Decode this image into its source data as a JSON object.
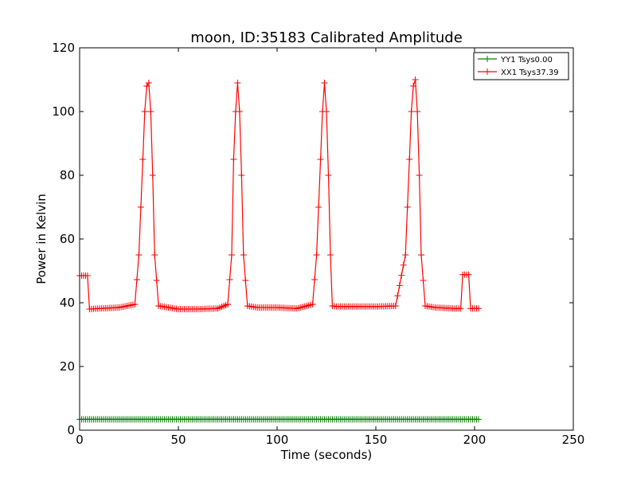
{
  "chart_data": {
    "type": "line",
    "title": "moon, ID:35183 Calibrated Amplitude",
    "xlabel": "Time (seconds)",
    "ylabel": "Power in Kelvin",
    "xlim": [
      0,
      250
    ],
    "ylim": [
      0,
      120
    ],
    "xticks": [
      "0",
      "50",
      "100",
      "150",
      "200",
      "250"
    ],
    "yticks": [
      "0",
      "20",
      "40",
      "60",
      "80",
      "100",
      "120"
    ],
    "grid": false,
    "legend_position": "top-right",
    "marker": "+",
    "series": [
      {
        "name": "YY1 Tsys0.00",
        "color": "#008000",
        "x": [
          0,
          10,
          20,
          30,
          40,
          50,
          60,
          70,
          80,
          90,
          100,
          110,
          120,
          130,
          140,
          150,
          160,
          170,
          180,
          190,
          202
        ],
        "y": [
          3.4,
          3.4,
          3.4,
          3.4,
          3.4,
          3.4,
          3.4,
          3.4,
          3.4,
          3.4,
          3.4,
          3.4,
          3.4,
          3.4,
          3.4,
          3.4,
          3.4,
          3.4,
          3.4,
          3.4,
          3.4
        ]
      },
      {
        "name": "XX1 Tsys37.39",
        "color": "#ff0000",
        "x": [
          0,
          4,
          5,
          10,
          20,
          28,
          30,
          32,
          33,
          34,
          35,
          36,
          37,
          38,
          40,
          45,
          50,
          60,
          70,
          75,
          77,
          78,
          79,
          80,
          81,
          82,
          83,
          85,
          90,
          100,
          110,
          118,
          120,
          122,
          123,
          124,
          125,
          126,
          127,
          128,
          130,
          140,
          150,
          160,
          165,
          167,
          168,
          169,
          170,
          171,
          172,
          173,
          175,
          180,
          190,
          193,
          194,
          197,
          198,
          202
        ],
        "y": [
          48.5,
          48.5,
          38,
          38.2,
          38.5,
          39.5,
          55,
          85,
          100,
          108,
          109,
          100,
          80,
          55,
          39,
          38.5,
          38,
          38,
          38.2,
          39.5,
          55,
          85,
          100,
          109,
          100,
          80,
          55,
          39,
          38.5,
          38.5,
          38.2,
          39.5,
          55,
          85,
          100,
          109,
          100,
          80,
          55,
          39,
          38.8,
          38.8,
          38.8,
          39,
          55,
          85,
          100,
          108,
          110,
          100,
          80,
          55,
          39,
          38.5,
          38.2,
          38.2,
          48.8,
          48.8,
          38.2,
          38.2
        ]
      }
    ]
  }
}
